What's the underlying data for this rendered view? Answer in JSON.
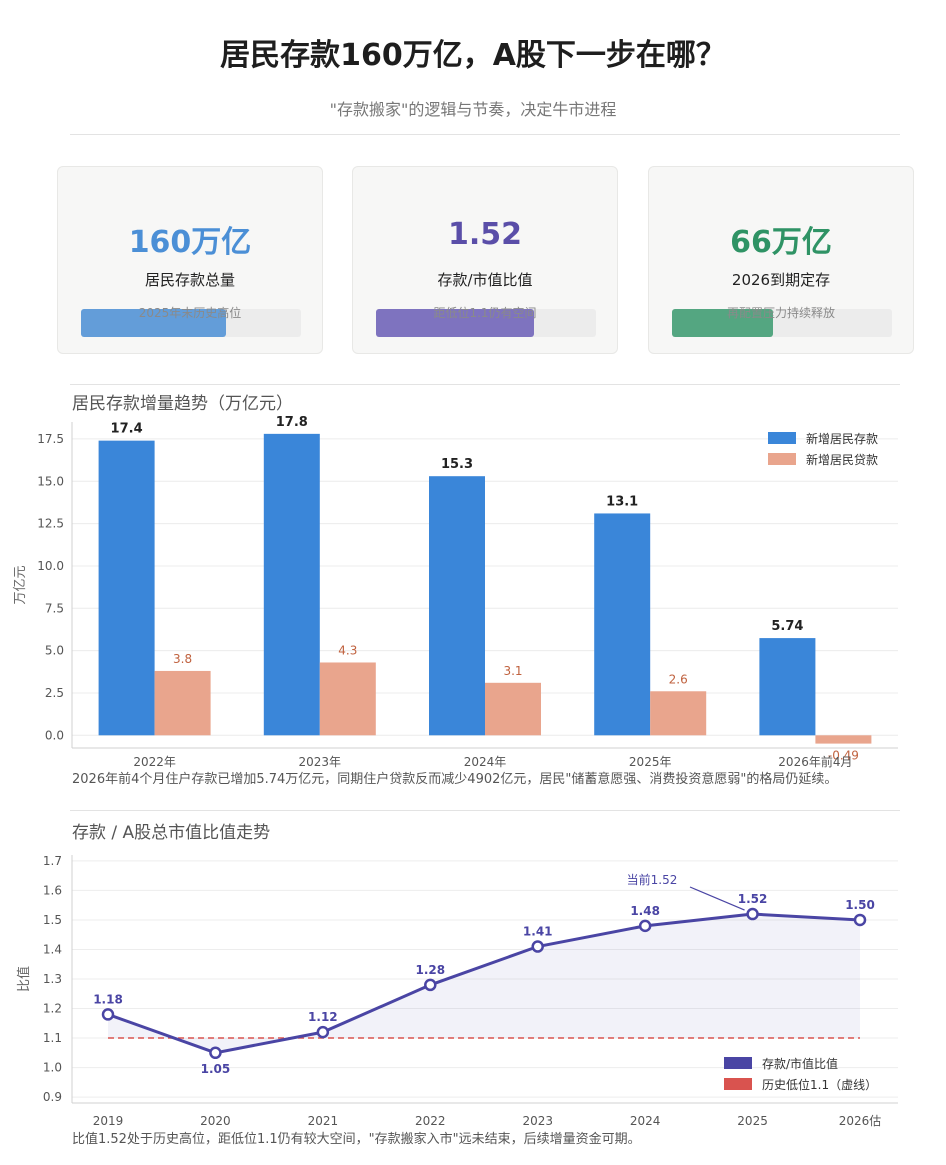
{
  "header": {
    "title": "居民存款160万亿，A股下一步在哪？",
    "subtitle": "\"存款搬家\"的逻辑与节奏，决定牛市进程"
  },
  "cards": [
    {
      "value": "160万亿",
      "label": "居民存款总量",
      "note": "2025年末历史高位",
      "progress": 0.66,
      "color": "#4b8fd6"
    },
    {
      "value": "1.52",
      "label": "存款/市值比值",
      "note": "距低位1.1仍有空间",
      "progress": 0.72,
      "color": "#6b5eb7"
    },
    {
      "value": "66万亿",
      "label": "2026到期定存",
      "note": "再配置压力持续释放",
      "progress": 0.46,
      "color": "#3a9a6e"
    }
  ],
  "bar_section": {
    "title": "居民存款增量趋势（万亿元）",
    "caption": "2026年前4个月住户存款已增加5.74万亿元，同期住户贷款反而减少4902亿元，居民\"储蓄意愿强、消费投资意愿弱\"的格局仍延续。"
  },
  "line_section": {
    "title": "存款 / A股总市值比值走势",
    "caption": "比值1.52处于历史高位，距低位1.1仍有较大空间，\"存款搬家入市\"远未结束，后续增量资金可期。"
  },
  "chart_data": [
    {
      "type": "bar",
      "categories": [
        "2022年",
        "2023年",
        "2024年",
        "2025年",
        "2026年前4月"
      ],
      "series": [
        {
          "name": "新增居民存款",
          "values": [
            17.4,
            17.8,
            15.3,
            13.1,
            5.74
          ],
          "labels": [
            "17.4",
            "17.8",
            "15.3",
            "13.1",
            "5.74"
          ],
          "color": "#3a86d9"
        },
        {
          "name": "新增居民贷款",
          "values": [
            3.8,
            4.3,
            3.1,
            2.6,
            -0.49
          ],
          "labels": [
            "3.8",
            "4.3",
            "3.1",
            "2.6",
            "-0.49"
          ],
          "color": "#e9a58d"
        }
      ],
      "ylabel": "万亿元",
      "ylim": [
        -0.75,
        18.5
      ],
      "yticks": [
        "0.0",
        "2.5",
        "5.0",
        "7.5",
        "10.0",
        "12.5",
        "15.0",
        "17.5"
      ],
      "legend": "top-right",
      "grid": true
    },
    {
      "type": "line",
      "x": [
        "2019",
        "2020",
        "2021",
        "2022",
        "2023",
        "2024",
        "2025",
        "2026估"
      ],
      "series": [
        {
          "name": "存款/市值比值",
          "values": [
            1.18,
            1.05,
            1.12,
            1.28,
            1.41,
            1.48,
            1.52,
            1.5
          ],
          "labels": [
            "1.18",
            "1.05",
            "1.12",
            "1.28",
            "1.41",
            "1.48",
            "1.52",
            "1.50"
          ],
          "color": "#4a45a4"
        },
        {
          "name": "历史低位1.1（虚线）",
          "value": 1.1,
          "color": "#d9534f"
        }
      ],
      "annotation": {
        "text": "当前1.52",
        "target_index": 6
      },
      "ylabel": "比值",
      "ylim": [
        0.88,
        1.72
      ],
      "yticks": [
        "0.9",
        "1.0",
        "1.1",
        "1.2",
        "1.3",
        "1.4",
        "1.5",
        "1.6",
        "1.7"
      ],
      "legend": "bottom-right",
      "grid": true
    }
  ]
}
